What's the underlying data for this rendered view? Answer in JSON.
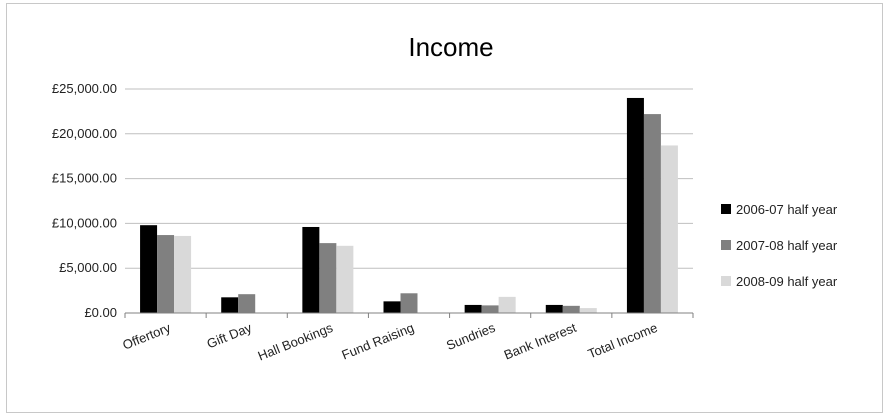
{
  "chart_data": {
    "type": "bar",
    "title": "Income",
    "categories": [
      "Offertory",
      "Gift Day",
      "Hall Bookings",
      "Fund Raising",
      "Sundries",
      "Bank Interest",
      "Total Income"
    ],
    "series": [
      {
        "name": "2006-07 half year",
        "color": "#000000",
        "values": [
          9800,
          1750,
          9600,
          1300,
          900,
          900,
          24000
        ]
      },
      {
        "name": "2007-08 half year",
        "color": "#808080",
        "values": [
          8700,
          2100,
          7800,
          2200,
          850,
          800,
          22200
        ]
      },
      {
        "name": "2008-09 half year",
        "color": "#d9d9d9",
        "values": [
          8600,
          0,
          7500,
          0,
          1800,
          550,
          18700
        ]
      }
    ],
    "yticks": [
      "£0.00",
      "£5,000.00",
      "£10,000.00",
      "£15,000.00",
      "£20,000.00",
      "£25,000.00"
    ],
    "ylim": [
      0,
      25000
    ],
    "grid": true,
    "legend": "right"
  }
}
